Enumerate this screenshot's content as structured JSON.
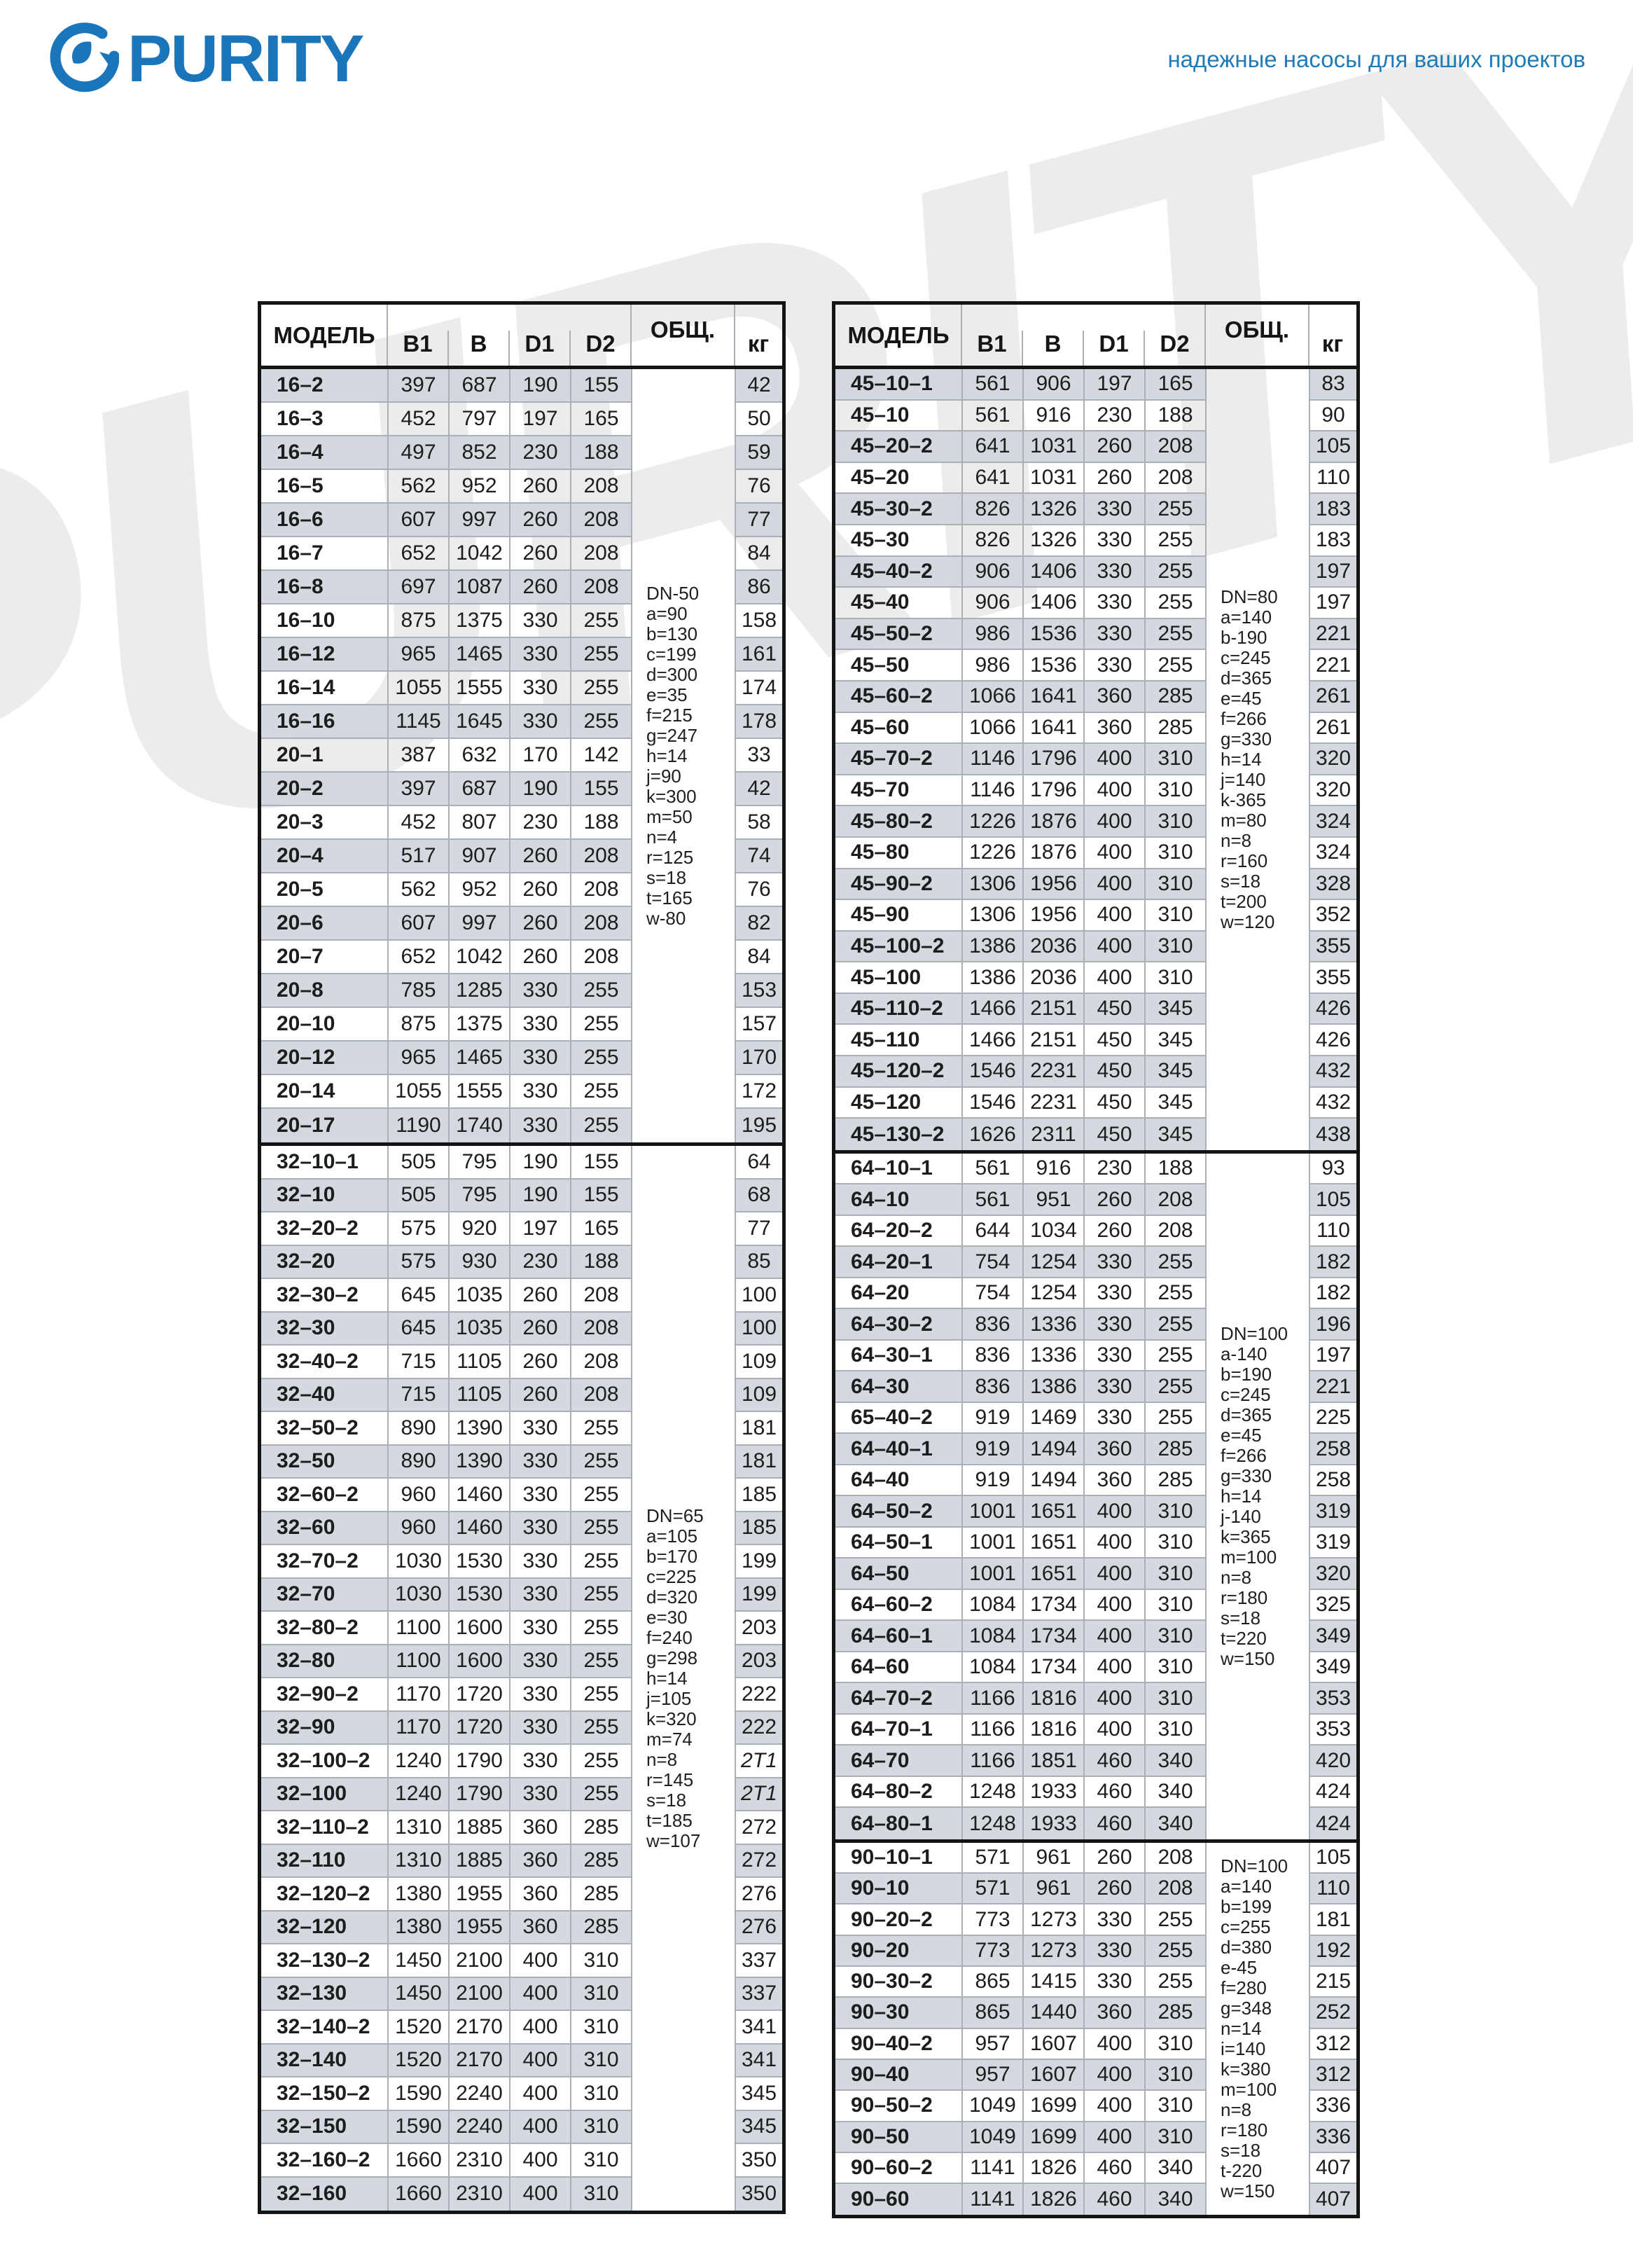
{
  "branding": {
    "logo_text": "PURITY",
    "watermark_text": "PURITY",
    "tagline": "надежные насосы для ваших проектов",
    "brand_color": "#1b75bb"
  },
  "colors": {
    "accent": "#1b75bb",
    "row_shade": "#d0d6dd",
    "border_dark": "#141414",
    "border_light": "#abb0b6",
    "watermark": "#ececec"
  },
  "table_headers": {
    "model": "МОДЕЛЬ",
    "b1": "B1",
    "b": "B",
    "d1": "D1",
    "d2": "D2",
    "obsh": "ОБЩ.",
    "kg": "кг"
  },
  "left_table": {
    "sections": [
      {
        "notes": [
          "DN-50",
          "a=90",
          "b=130",
          "c=199",
          "d=300",
          "e=35",
          "f=215",
          "g=247",
          "h=14",
          "j=90",
          "k=300",
          "m=50",
          "n=4",
          "r=125",
          "s=18",
          "t=165",
          "w-80"
        ],
        "rows": [
          [
            "16–2",
            "397",
            "687",
            "190",
            "155",
            "42"
          ],
          [
            "16–3",
            "452",
            "797",
            "197",
            "165",
            "50"
          ],
          [
            "16–4",
            "497",
            "852",
            "230",
            "188",
            "59"
          ],
          [
            "16–5",
            "562",
            "952",
            "260",
            "208",
            "76"
          ],
          [
            "16–6",
            "607",
            "997",
            "260",
            "208",
            "77"
          ],
          [
            "16–7",
            "652",
            "1042",
            "260",
            "208",
            "84"
          ],
          [
            "16–8",
            "697",
            "1087",
            "260",
            "208",
            "86"
          ],
          [
            "16–10",
            "875",
            "1375",
            "330",
            "255",
            "158"
          ],
          [
            "16–12",
            "965",
            "1465",
            "330",
            "255",
            "161"
          ],
          [
            "16–14",
            "1055",
            "1555",
            "330",
            "255",
            "174"
          ],
          [
            "16–16",
            "1145",
            "1645",
            "330",
            "255",
            "178"
          ],
          [
            "20–1",
            "387",
            "632",
            "170",
            "142",
            "33"
          ],
          [
            "20–2",
            "397",
            "687",
            "190",
            "155",
            "42"
          ],
          [
            "20–3",
            "452",
            "807",
            "230",
            "188",
            "58"
          ],
          [
            "20–4",
            "517",
            "907",
            "260",
            "208",
            "74"
          ],
          [
            "20–5",
            "562",
            "952",
            "260",
            "208",
            "76"
          ],
          [
            "20–6",
            "607",
            "997",
            "260",
            "208",
            "82"
          ],
          [
            "20–7",
            "652",
            "1042",
            "260",
            "208",
            "84"
          ],
          [
            "20–8",
            "785",
            "1285",
            "330",
            "255",
            "153"
          ],
          [
            "20–10",
            "875",
            "1375",
            "330",
            "255",
            "157"
          ],
          [
            "20–12",
            "965",
            "1465",
            "330",
            "255",
            "170"
          ],
          [
            "20–14",
            "1055",
            "1555",
            "330",
            "255",
            "172"
          ],
          [
            "20–17",
            "1190",
            "1740",
            "330",
            "255",
            "195"
          ]
        ]
      },
      {
        "notes": [
          "DN=65",
          "a=105",
          "b=170",
          "c=225",
          "d=320",
          "e=30",
          "f=240",
          "g=298",
          "h=14",
          "j=105",
          "k=320",
          "m=74",
          "n=8",
          "r=145",
          "s=18",
          "t=185",
          "w=107"
        ],
        "rows": [
          [
            "32–10–1",
            "505",
            "795",
            "190",
            "155",
            "64"
          ],
          [
            "32–10",
            "505",
            "795",
            "190",
            "155",
            "68"
          ],
          [
            "32–20–2",
            "575",
            "920",
            "197",
            "165",
            "77"
          ],
          [
            "32–20",
            "575",
            "930",
            "230",
            "188",
            "85"
          ],
          [
            "32–30–2",
            "645",
            "1035",
            "260",
            "208",
            "100"
          ],
          [
            "32–30",
            "645",
            "1035",
            "260",
            "208",
            "100"
          ],
          [
            "32–40–2",
            "715",
            "1105",
            "260",
            "208",
            "109"
          ],
          [
            "32–40",
            "715",
            "1105",
            "260",
            "208",
            "109"
          ],
          [
            "32–50–2",
            "890",
            "1390",
            "330",
            "255",
            "181"
          ],
          [
            "32–50",
            "890",
            "1390",
            "330",
            "255",
            "181"
          ],
          [
            "32–60–2",
            "960",
            "1460",
            "330",
            "255",
            "185"
          ],
          [
            "32–60",
            "960",
            "1460",
            "330",
            "255",
            "185"
          ],
          [
            "32–70–2",
            "1030",
            "1530",
            "330",
            "255",
            "199"
          ],
          [
            "32–70",
            "1030",
            "1530",
            "330",
            "255",
            "199"
          ],
          [
            "32–80–2",
            "1100",
            "1600",
            "330",
            "255",
            "203"
          ],
          [
            "32–80",
            "1100",
            "1600",
            "330",
            "255",
            "203"
          ],
          [
            "32–90–2",
            "1170",
            "1720",
            "330",
            "255",
            "222"
          ],
          [
            "32–90",
            "1170",
            "1720",
            "330",
            "255",
            "222"
          ],
          [
            "32–100–2",
            "1240",
            "1790",
            "330",
            "255",
            "2T1"
          ],
          [
            "32–100",
            "1240",
            "1790",
            "330",
            "255",
            "2T1"
          ],
          [
            "32–110–2",
            "1310",
            "1885",
            "360",
            "285",
            "272"
          ],
          [
            "32–110",
            "1310",
            "1885",
            "360",
            "285",
            "272"
          ],
          [
            "32–120–2",
            "1380",
            "1955",
            "360",
            "285",
            "276"
          ],
          [
            "32–120",
            "1380",
            "1955",
            "360",
            "285",
            "276"
          ],
          [
            "32–130–2",
            "1450",
            "2100",
            "400",
            "310",
            "337"
          ],
          [
            "32–130",
            "1450",
            "2100",
            "400",
            "310",
            "337"
          ],
          [
            "32–140–2",
            "1520",
            "2170",
            "400",
            "310",
            "341"
          ],
          [
            "32–140",
            "1520",
            "2170",
            "400",
            "310",
            "341"
          ],
          [
            "32–150–2",
            "1590",
            "2240",
            "400",
            "310",
            "345"
          ],
          [
            "32–150",
            "1590",
            "2240",
            "400",
            "310",
            "345"
          ],
          [
            "32–160–2",
            "1660",
            "2310",
            "400",
            "310",
            "350"
          ],
          [
            "32–160",
            "1660",
            "2310",
            "400",
            "310",
            "350"
          ]
        ]
      }
    ]
  },
  "right_table": {
    "sections": [
      {
        "notes": [
          "DN=80",
          "a=140",
          "b-190",
          "c=245",
          "d=365",
          "e=45",
          "f=266",
          "g=330",
          "h=14",
          "j=140",
          "k-365",
          "m=80",
          "n=8",
          "r=160",
          "s=18",
          "t=200",
          "w=120"
        ],
        "rows": [
          [
            "45–10–1",
            "561",
            "906",
            "197",
            "165",
            "83"
          ],
          [
            "45–10",
            "561",
            "916",
            "230",
            "188",
            "90"
          ],
          [
            "45–20–2",
            "641",
            "1031",
            "260",
            "208",
            "105"
          ],
          [
            "45–20",
            "641",
            "1031",
            "260",
            "208",
            "110"
          ],
          [
            "45–30–2",
            "826",
            "1326",
            "330",
            "255",
            "183"
          ],
          [
            "45–30",
            "826",
            "1326",
            "330",
            "255",
            "183"
          ],
          [
            "45–40–2",
            "906",
            "1406",
            "330",
            "255",
            "197"
          ],
          [
            "45–40",
            "906",
            "1406",
            "330",
            "255",
            "197"
          ],
          [
            "45–50–2",
            "986",
            "1536",
            "330",
            "255",
            "221"
          ],
          [
            "45–50",
            "986",
            "1536",
            "330",
            "255",
            "221"
          ],
          [
            "45–60–2",
            "1066",
            "1641",
            "360",
            "285",
            "261"
          ],
          [
            "45–60",
            "1066",
            "1641",
            "360",
            "285",
            "261"
          ],
          [
            "45–70–2",
            "1146",
            "1796",
            "400",
            "310",
            "320"
          ],
          [
            "45–70",
            "1146",
            "1796",
            "400",
            "310",
            "320"
          ],
          [
            "45–80–2",
            "1226",
            "1876",
            "400",
            "310",
            "324"
          ],
          [
            "45–80",
            "1226",
            "1876",
            "400",
            "310",
            "324"
          ],
          [
            "45–90–2",
            "1306",
            "1956",
            "400",
            "310",
            "328"
          ],
          [
            "45–90",
            "1306",
            "1956",
            "400",
            "310",
            "352"
          ],
          [
            "45–100–2",
            "1386",
            "2036",
            "400",
            "310",
            "355"
          ],
          [
            "45–100",
            "1386",
            "2036",
            "400",
            "310",
            "355"
          ],
          [
            "45–110–2",
            "1466",
            "2151",
            "450",
            "345",
            "426"
          ],
          [
            "45–110",
            "1466",
            "2151",
            "450",
            "345",
            "426"
          ],
          [
            "45–120–2",
            "1546",
            "2231",
            "450",
            "345",
            "432"
          ],
          [
            "45–120",
            "1546",
            "2231",
            "450",
            "345",
            "432"
          ],
          [
            "45–130–2",
            "1626",
            "2311",
            "450",
            "345",
            "438"
          ]
        ]
      },
      {
        "notes": [
          "DN=100",
          "a-140",
          "b=190",
          "c=245",
          "d=365",
          "e=45",
          "f=266",
          "g=330",
          "h=14",
          "j-140",
          "k=365",
          "m=100",
          "n=8",
          "r=180",
          "s=18",
          "t=220",
          "w=150"
        ],
        "rows": [
          [
            "64–10–1",
            "561",
            "916",
            "230",
            "188",
            "93"
          ],
          [
            "64–10",
            "561",
            "951",
            "260",
            "208",
            "105"
          ],
          [
            "64–20–2",
            "644",
            "1034",
            "260",
            "208",
            "110"
          ],
          [
            "64–20–1",
            "754",
            "1254",
            "330",
            "255",
            "182"
          ],
          [
            "64–20",
            "754",
            "1254",
            "330",
            "255",
            "182"
          ],
          [
            "64–30–2",
            "836",
            "1336",
            "330",
            "255",
            "196"
          ],
          [
            "64–30–1",
            "836",
            "1336",
            "330",
            "255",
            "197"
          ],
          [
            "64–30",
            "836",
            "1386",
            "330",
            "255",
            "221"
          ],
          [
            "65–40–2",
            "919",
            "1469",
            "330",
            "255",
            "225"
          ],
          [
            "64–40–1",
            "919",
            "1494",
            "360",
            "285",
            "258"
          ],
          [
            "64–40",
            "919",
            "1494",
            "360",
            "285",
            "258"
          ],
          [
            "64–50–2",
            "1001",
            "1651",
            "400",
            "310",
            "319"
          ],
          [
            "64–50–1",
            "1001",
            "1651",
            "400",
            "310",
            "319"
          ],
          [
            "64–50",
            "1001",
            "1651",
            "400",
            "310",
            "320"
          ],
          [
            "64–60–2",
            "1084",
            "1734",
            "400",
            "310",
            "325"
          ],
          [
            "64–60–1",
            "1084",
            "1734",
            "400",
            "310",
            "349"
          ],
          [
            "64–60",
            "1084",
            "1734",
            "400",
            "310",
            "349"
          ],
          [
            "64–70–2",
            "1166",
            "1816",
            "400",
            "310",
            "353"
          ],
          [
            "64–70–1",
            "1166",
            "1816",
            "400",
            "310",
            "353"
          ],
          [
            "64–70",
            "1166",
            "1851",
            "460",
            "340",
            "420"
          ],
          [
            "64–80–2",
            "1248",
            "1933",
            "460",
            "340",
            "424"
          ],
          [
            "64–80–1",
            "1248",
            "1933",
            "460",
            "340",
            "424"
          ]
        ]
      },
      {
        "notes": [
          "DN=100",
          "a=140",
          "b=199",
          "c=255",
          "d=380",
          "e-45",
          "f=280",
          "g=348",
          "n=14",
          "i=140",
          "k=380",
          "m=100",
          "n=8",
          "r=180",
          "s=18",
          "t-220",
          "w=150"
        ],
        "rows": [
          [
            "90–10–1",
            "571",
            "961",
            "260",
            "208",
            "105"
          ],
          [
            "90–10",
            "571",
            "961",
            "260",
            "208",
            "110"
          ],
          [
            "90–20–2",
            "773",
            "1273",
            "330",
            "255",
            "181"
          ],
          [
            "90–20",
            "773",
            "1273",
            "330",
            "255",
            "192"
          ],
          [
            "90–30–2",
            "865",
            "1415",
            "330",
            "255",
            "215"
          ],
          [
            "90–30",
            "865",
            "1440",
            "360",
            "285",
            "252"
          ],
          [
            "90–40–2",
            "957",
            "1607",
            "400",
            "310",
            "312"
          ],
          [
            "90–40",
            "957",
            "1607",
            "400",
            "310",
            "312"
          ],
          [
            "90–50–2",
            "1049",
            "1699",
            "400",
            "310",
            "336"
          ],
          [
            "90–50",
            "1049",
            "1699",
            "400",
            "310",
            "336"
          ],
          [
            "90–60–2",
            "1141",
            "1826",
            "460",
            "340",
            "407"
          ],
          [
            "90–60",
            "1141",
            "1826",
            "460",
            "340",
            "407"
          ]
        ]
      }
    ]
  }
}
